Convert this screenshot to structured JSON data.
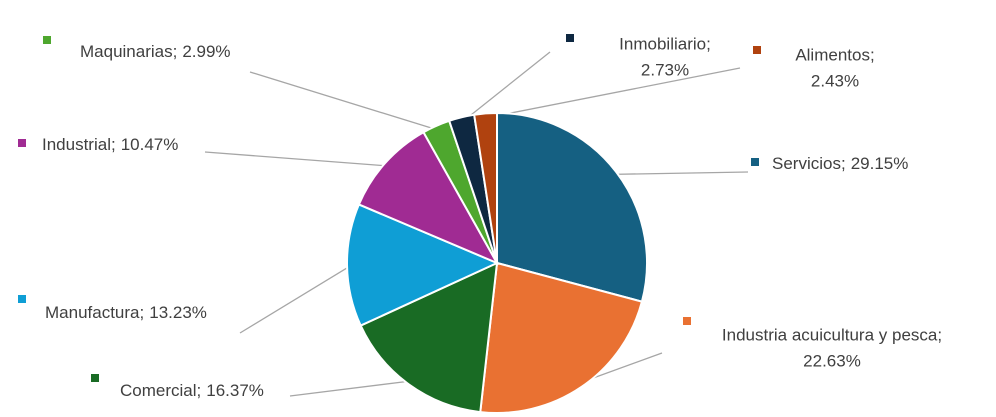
{
  "chart_data": {
    "type": "pie",
    "categories": [
      "Servicios;",
      "Industria acuicultura y pesca;",
      "Comercial;",
      "Manufactura;",
      "Industrial;",
      "Maquinarias;",
      "Inmobiliario;",
      "Alimentos;"
    ],
    "values": [
      29.15,
      22.63,
      16.37,
      13.23,
      10.47,
      2.99,
      2.73,
      2.43
    ],
    "value_labels": [
      "29.15%",
      "22.63%",
      "16.37%",
      "13.23%",
      "10.47%",
      "2.99%",
      "2.73%",
      "2.43%"
    ],
    "colors": [
      "#156082",
      "#e97132",
      "#196b24",
      "#0f9ed5",
      "#a02b93",
      "#4ea72e",
      "#0e2841",
      "#b0420f"
    ]
  }
}
